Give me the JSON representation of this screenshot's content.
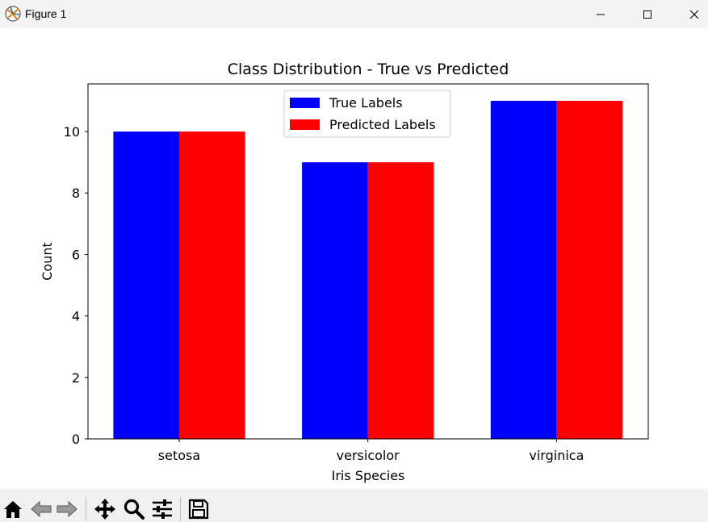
{
  "window": {
    "title": "Figure 1",
    "icons": {
      "app": "matplotlib-logo-icon",
      "minimize": "minimize-icon",
      "maximize": "maximize-icon",
      "close": "close-icon"
    }
  },
  "toolbar": {
    "buttons": [
      "home-icon",
      "back-arrow-icon",
      "forward-arrow-icon",
      "pan-move-icon",
      "zoom-magnifier-icon",
      "configure-subplots-icon",
      "save-disk-icon"
    ]
  },
  "chart_data": {
    "type": "bar",
    "title": "Class Distribution - True vs Predicted",
    "xlabel": "Iris Species",
    "ylabel": "Count",
    "categories": [
      "setosa",
      "versicolor",
      "virginica"
    ],
    "series": [
      {
        "name": "True Labels",
        "values": [
          10,
          9,
          11
        ],
        "color": "#0000ff"
      },
      {
        "name": "Predicted Labels",
        "values": [
          10,
          9,
          11
        ],
        "color": "#ff0000"
      }
    ],
    "ylim": [
      0,
      11.55
    ],
    "yticks": [
      "0",
      "2",
      "4",
      "6",
      "8",
      "10"
    ],
    "grid": false,
    "legend_position": "upper center"
  }
}
